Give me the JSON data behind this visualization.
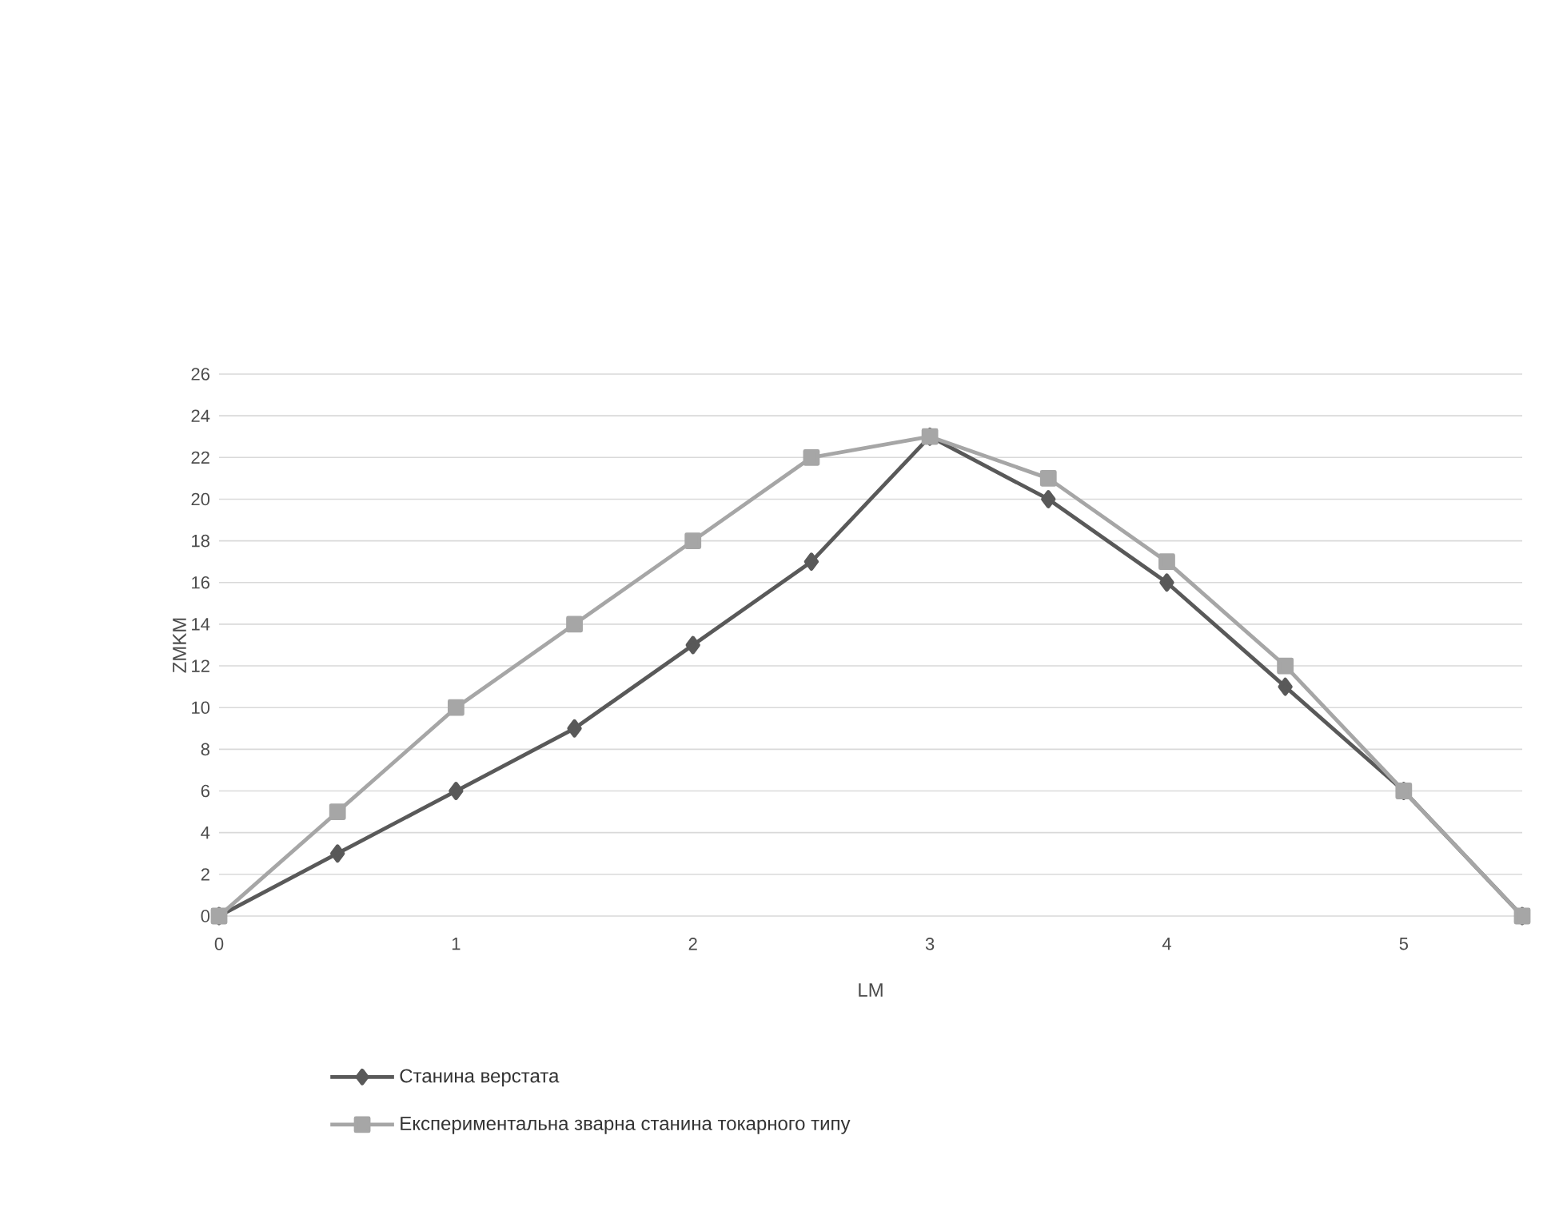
{
  "chart_data": {
    "type": "line",
    "xlabel": "LM",
    "ylabel": "ZMKM",
    "x": [
      0,
      0.5,
      1,
      1.5,
      2,
      2.5,
      3,
      3.5,
      4,
      4.5,
      5,
      5.5
    ],
    "series": [
      {
        "name": "Станина верстата",
        "color": "#595959",
        "marker": "diamond",
        "values": [
          0,
          3,
          6,
          9,
          13,
          17,
          23,
          20,
          16,
          11,
          6,
          0
        ]
      },
      {
        "name": "Експериментальна зварна станина токарного типу",
        "color": "#a6a6a6",
        "marker": "square",
        "values": [
          0,
          5,
          10,
          14,
          18,
          22,
          23,
          21,
          17,
          12,
          6,
          0
        ]
      }
    ],
    "xlim": [
      0,
      5.5
    ],
    "xticks": [
      0,
      1,
      2,
      3,
      4,
      5
    ],
    "ylim": [
      0,
      26
    ],
    "yticks": [
      0,
      2,
      4,
      6,
      8,
      10,
      12,
      14,
      16,
      18,
      20,
      22,
      24,
      26
    ],
    "grid": "y",
    "legend": "bottom"
  }
}
